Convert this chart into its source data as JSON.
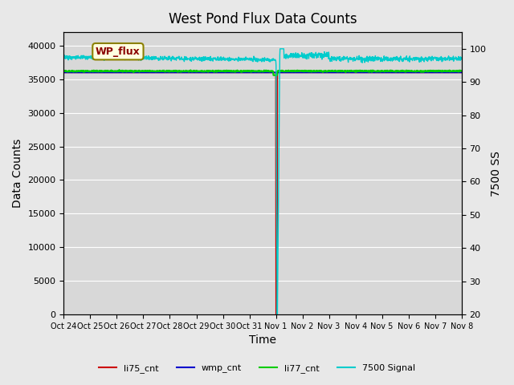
{
  "title": "West Pond Flux Data Counts",
  "ylabel_left": "Data Counts",
  "ylabel_right": "7500 SS",
  "xlabel": "Time",
  "xlim_start": 0,
  "xlim_end": 15,
  "ylim_left": [
    0,
    42000
  ],
  "ylim_right": [
    20,
    105
  ],
  "xtick_labels": [
    "Oct 24",
    "Oct 25",
    "Oct 26",
    "Oct 27",
    "Oct 28",
    "Oct 29",
    "Oct 30",
    "Oct 31",
    "Nov 1",
    "Nov 2",
    "Nov 3",
    "Nov 4",
    "Nov 5",
    "Nov 6",
    "Nov 7",
    "Nov 8"
  ],
  "watermark": "WP_flux",
  "bg_color": "#e8e8e8",
  "plot_bg_color": "#d8d8d8",
  "colors": {
    "li75_cnt": "#cc0000",
    "wmp_cnt": "#0000cc",
    "li77_cnt": "#00cc00",
    "7500_signal": "#00cccc"
  }
}
